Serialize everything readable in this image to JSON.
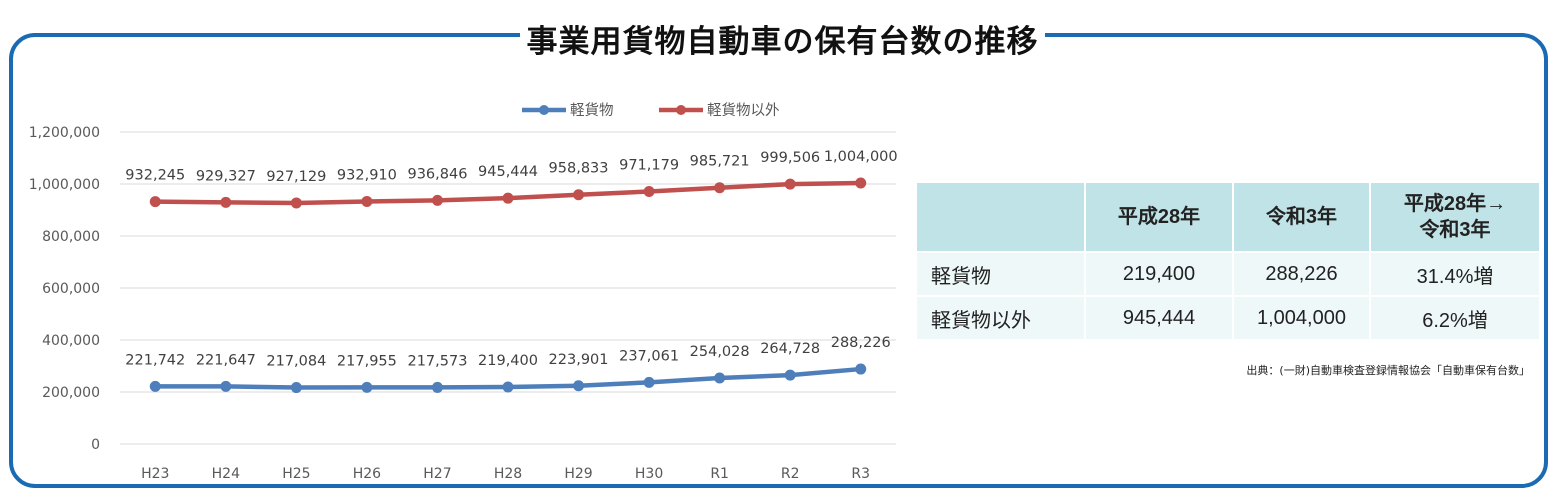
{
  "title": "事業用貨物自動車の保有台数の推移",
  "colors": {
    "frame": "#1a6bb3",
    "series1": "#4f7fba",
    "series2": "#c0504d",
    "table_header": "#bfe3e6",
    "table_cell": "#eef8f9"
  },
  "chart_data": {
    "type": "line",
    "categories": [
      "H23",
      "H24",
      "H25",
      "H26",
      "H27",
      "H28",
      "H29",
      "H30",
      "R1",
      "R2",
      "R3"
    ],
    "series": [
      {
        "name": "軽貨物",
        "color": "#4f7fba",
        "values": [
          221742,
          221647,
          217084,
          217955,
          217573,
          219400,
          223901,
          237061,
          254028,
          264728,
          288226
        ],
        "labels": [
          "221,742",
          "221,647",
          "217,084",
          "217,955",
          "217,573",
          "219,400",
          "223,901",
          "237,061",
          "254,028",
          "264,728",
          "288,226"
        ]
      },
      {
        "name": "軽貨物以外",
        "color": "#c0504d",
        "values": [
          932245,
          929327,
          927129,
          932910,
          936846,
          945444,
          958833,
          971179,
          985721,
          999506,
          1004000
        ],
        "labels": [
          "932,245",
          "929,327",
          "927,129",
          "932,910",
          "936,846",
          "945,444",
          "958,833",
          "971,179",
          "985,721",
          "999,506",
          "1,004,000"
        ]
      }
    ],
    "yticks": [
      0,
      200000,
      400000,
      600000,
      800000,
      1000000,
      1200000
    ],
    "ytick_labels": [
      "0",
      "200,000",
      "400,000",
      "600,000",
      "800,000",
      "1,000,000",
      "1,200,000"
    ],
    "ylim": [
      0,
      1200000
    ],
    "grid": true,
    "legend": "top-center"
  },
  "table": {
    "headers": [
      "",
      "平成28年",
      "令和3年",
      "平成28年→",
      "令和3年"
    ],
    "rows": [
      {
        "label": "軽貨物",
        "h28": "219,400",
        "r3": "288,226",
        "change": "31.4%増"
      },
      {
        "label": "軽貨物以外",
        "h28": "945,444",
        "r3": "1,004,000",
        "change": "6.2%増"
      }
    ]
  },
  "source": "出典：(一財)自動車検査登録情報協会「自動車保有台数」"
}
